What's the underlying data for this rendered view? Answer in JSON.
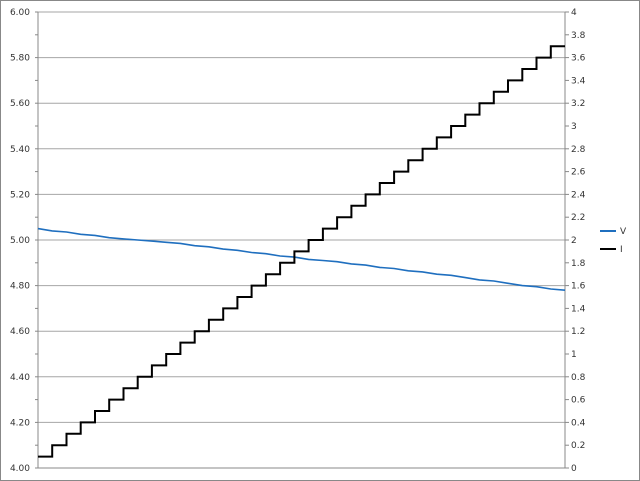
{
  "chart_data": {
    "type": "line",
    "title": "",
    "xlabel": "",
    "grid": true,
    "legend_placement": "right",
    "y_left": {
      "min": 4.0,
      "max": 6.0,
      "step": 0.2,
      "ticks": [
        "4.00",
        "4.20",
        "4.40",
        "4.60",
        "4.80",
        "5.00",
        "5.20",
        "5.40",
        "5.60",
        "5.80",
        "6.00"
      ]
    },
    "y_right": {
      "min": 0,
      "max": 4,
      "step": 0.2,
      "ticks": [
        "0",
        "0.2",
        "0.4",
        "0.6",
        "0.8",
        "1",
        "1.2",
        "1.4",
        "1.6",
        "1.8",
        "2",
        "2.2",
        "2.4",
        "2.6",
        "2.8",
        "3",
        "3.2",
        "3.4",
        "3.6",
        "3.8",
        "4"
      ]
    },
    "series": [
      {
        "name": "V",
        "axis": "left",
        "color": "#1f6fbf",
        "values": [
          5.05,
          5.04,
          5.035,
          5.025,
          5.02,
          5.01,
          5.005,
          5.0,
          4.995,
          4.99,
          4.985,
          4.975,
          4.97,
          4.96,
          4.955,
          4.945,
          4.94,
          4.93,
          4.925,
          4.915,
          4.91,
          4.905,
          4.895,
          4.89,
          4.88,
          4.875,
          4.865,
          4.86,
          4.85,
          4.845,
          4.835,
          4.825,
          4.82,
          4.81,
          4.8,
          4.795,
          4.785,
          4.78
        ]
      },
      {
        "name": "I",
        "axis": "right",
        "color": "#000000",
        "step": true,
        "values": [
          0.1,
          0.2,
          0.3,
          0.4,
          0.5,
          0.6,
          0.7,
          0.8,
          0.9,
          1.0,
          1.1,
          1.2,
          1.3,
          1.4,
          1.5,
          1.6,
          1.7,
          1.8,
          1.9,
          2.0,
          2.1,
          2.2,
          2.3,
          2.4,
          2.5,
          2.6,
          2.7,
          2.8,
          2.9,
          3.0,
          3.1,
          3.2,
          3.3,
          3.4,
          3.5,
          3.6,
          3.7
        ]
      }
    ]
  }
}
